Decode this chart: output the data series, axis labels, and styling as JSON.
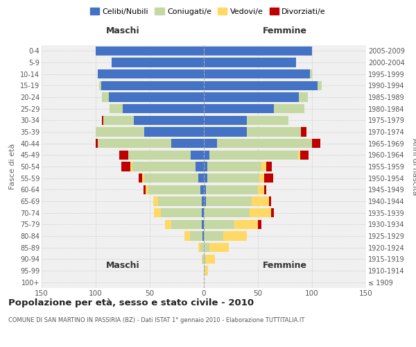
{
  "age_groups": [
    "100+",
    "95-99",
    "90-94",
    "85-89",
    "80-84",
    "75-79",
    "70-74",
    "65-69",
    "60-64",
    "55-59",
    "50-54",
    "45-49",
    "40-44",
    "35-39",
    "30-34",
    "25-29",
    "20-24",
    "15-19",
    "10-14",
    "5-9",
    "0-4"
  ],
  "birth_years": [
    "≤ 1909",
    "1910-1914",
    "1915-1919",
    "1920-1924",
    "1925-1929",
    "1930-1934",
    "1935-1939",
    "1940-1944",
    "1945-1949",
    "1950-1954",
    "1955-1959",
    "1960-1964",
    "1965-1969",
    "1970-1974",
    "1975-1979",
    "1980-1984",
    "1985-1989",
    "1990-1994",
    "1995-1999",
    "2000-2004",
    "2005-2009"
  ],
  "males": {
    "celibi": [
      0,
      0,
      0,
      0,
      1,
      2,
      2,
      2,
      3,
      5,
      8,
      12,
      30,
      55,
      65,
      75,
      88,
      95,
      98,
      85,
      100
    ],
    "coniugati": [
      0,
      0,
      1,
      3,
      12,
      28,
      38,
      40,
      48,
      50,
      58,
      58,
      68,
      45,
      28,
      12,
      6,
      2,
      0,
      0,
      0
    ],
    "vedovi": [
      0,
      0,
      1,
      2,
      5,
      6,
      6,
      5,
      3,
      2,
      2,
      0,
      0,
      0,
      0,
      0,
      0,
      0,
      0,
      0,
      0
    ],
    "divorziati": [
      0,
      0,
      0,
      0,
      0,
      0,
      0,
      0,
      2,
      3,
      8,
      8,
      2,
      0,
      1,
      0,
      0,
      0,
      0,
      0,
      0
    ]
  },
  "females": {
    "nubili": [
      0,
      0,
      0,
      0,
      0,
      0,
      0,
      2,
      2,
      3,
      3,
      5,
      12,
      40,
      40,
      65,
      88,
      105,
      98,
      85,
      100
    ],
    "coniugate": [
      0,
      1,
      2,
      5,
      18,
      28,
      42,
      42,
      48,
      48,
      50,
      82,
      88,
      50,
      38,
      28,
      8,
      4,
      2,
      0,
      0
    ],
    "vedove": [
      0,
      3,
      8,
      18,
      22,
      22,
      20,
      16,
      6,
      5,
      5,
      2,
      0,
      0,
      0,
      0,
      0,
      0,
      0,
      0,
      0
    ],
    "divorziate": [
      0,
      0,
      0,
      0,
      0,
      3,
      3,
      2,
      2,
      8,
      5,
      8,
      8,
      5,
      0,
      0,
      0,
      0,
      0,
      0,
      0
    ]
  },
  "colors": {
    "celibi": "#4472C4",
    "coniugati": "#C5D8A4",
    "vedovi": "#FFD966",
    "divorziati": "#C00000"
  },
  "legend_labels": [
    "Celibi/Nubili",
    "Coniugati/e",
    "Vedovi/e",
    "Divorziati/e"
  ],
  "title": "Popolazione per età, sesso e stato civile - 2010",
  "subtitle": "COMUNE DI SAN MARTINO IN PASSIRIA (BZ) - Dati ISTAT 1° gennaio 2010 - Elaborazione TUTTITALIA.IT",
  "xlabel_left": "Maschi",
  "xlabel_right": "Femmine",
  "ylabel_left": "Fasce di età",
  "ylabel_right": "Anni di nascita",
  "xlim": 150,
  "bg_color": "#ffffff",
  "grid_color": "#cccccc",
  "bar_height": 0.8
}
